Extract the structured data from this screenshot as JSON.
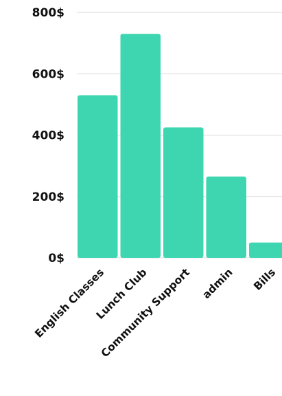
{
  "chart_data": {
    "type": "bar",
    "title": "",
    "xlabel": "",
    "ylabel": "",
    "categories": [
      "English Classes",
      "Lunch Club",
      "Community Support",
      "admin",
      "Bills"
    ],
    "values": [
      530,
      730,
      425,
      265,
      50
    ],
    "ylim": [
      0,
      800
    ],
    "y_ticks": [
      0,
      200,
      400,
      600,
      800
    ],
    "y_tick_labels": [
      "0$",
      "200$",
      "400$",
      "600$",
      "800$"
    ],
    "grid": true,
    "legend": "none",
    "bar_color": "#3dd6b0"
  }
}
